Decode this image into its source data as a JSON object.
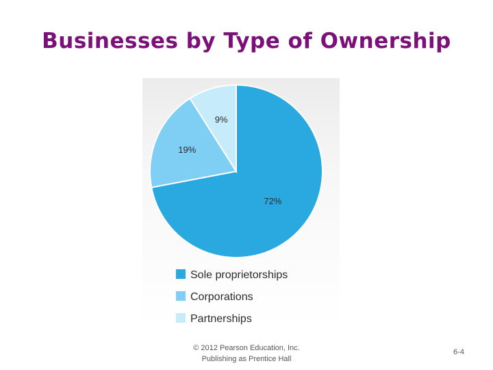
{
  "slide": {
    "title": "Businesses by Type of Ownership",
    "footer_line1": "© 2012 Pearson Education, Inc.",
    "footer_line2": "Publishing as Prentice Hall",
    "page_number": "6-4"
  },
  "chart_data": {
    "type": "pie",
    "title": "",
    "legend_position": "bottom",
    "slices": [
      {
        "name": "Sole proprietorships",
        "value": 72,
        "label": "72%",
        "color": "#2aa9e0"
      },
      {
        "name": "Corporations",
        "value": 19,
        "label": "19%",
        "color": "#7fcef3"
      },
      {
        "name": "Partnerships",
        "value": 9,
        "label": "9%",
        "color": "#c6ebfb"
      }
    ]
  }
}
